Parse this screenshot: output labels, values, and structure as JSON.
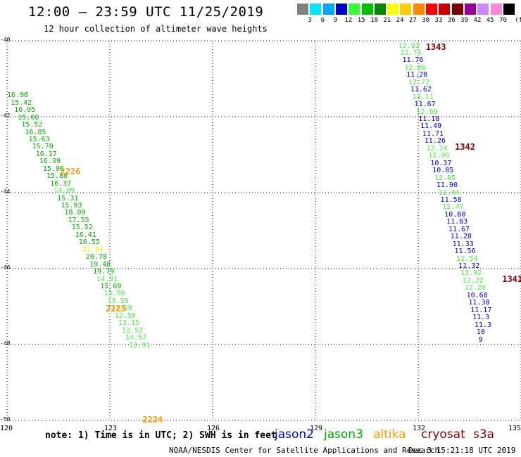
{
  "title": "12:00 – 23:59 UTC 11/25/2019",
  "subtitle": "12 hour collection of altimeter wave heights",
  "legend": {
    "unit": "(ft)",
    "bins": [
      {
        "label": "3",
        "color": "#808080"
      },
      {
        "label": "6",
        "color": "#00e5ff"
      },
      {
        "label": "9",
        "color": "#00a5ff"
      },
      {
        "label": "12",
        "color": "#0000cc"
      },
      {
        "label": "15",
        "color": "#33ff33"
      },
      {
        "label": "18",
        "color": "#00c000"
      },
      {
        "label": "21",
        "color": "#008800"
      },
      {
        "label": "24",
        "color": "#ffff00"
      },
      {
        "label": "27",
        "color": "#ffcc00"
      },
      {
        "label": "30",
        "color": "#ff8800"
      },
      {
        "label": "33",
        "color": "#ff0000"
      },
      {
        "label": "36",
        "color": "#cc0000"
      },
      {
        "label": "39",
        "color": "#770000"
      },
      {
        "label": "42",
        "color": "#990099"
      },
      {
        "label": "45",
        "color": "#cc88ff"
      },
      {
        "label": "70",
        "color": "#ff88dd"
      },
      {
        "label": "",
        "color": "#000000"
      }
    ]
  },
  "colors": {
    "light_green": "#44ee44",
    "green": "#00aa00",
    "blue": "#0000cc",
    "yellow": "#eeee00",
    "orange": "#ff9900",
    "dark_red": "#880000"
  },
  "axes": {
    "lat_ticks": [
      "-40",
      "-42",
      "-44",
      "-46",
      "-48",
      "-50"
    ],
    "lon_ticks": [
      "120",
      "123",
      "126",
      "129",
      "132",
      "135"
    ],
    "lat_range": [
      -50,
      -40
    ],
    "lon_range": [
      120,
      135
    ]
  },
  "passes": [
    {
      "label": "2226",
      "lon": 121.55,
      "lat": -43.44,
      "color": "orange"
    },
    {
      "label": "2225",
      "lon": 122.88,
      "lat": -47.06,
      "color": "orange"
    },
    {
      "label": "2224",
      "lon": 123.95,
      "lat": -49.98,
      "color": "orange"
    },
    {
      "label": "1343",
      "lon": 132.22,
      "lat": -40.16,
      "color": "dark_red"
    },
    {
      "label": "1342",
      "lon": 133.07,
      "lat": -42.8,
      "color": "dark_red"
    },
    {
      "label": "1341",
      "lon": 134.45,
      "lat": -46.28,
      "color": "dark_red"
    }
  ],
  "tracks": [
    {
      "name": "west",
      "start": [
        120.0,
        -41.45
      ],
      "step": [
        0.1046,
        -0.1935
      ],
      "values": [
        {
          "v": "16.96",
          "c": "green"
        },
        {
          "v": "15.42",
          "c": "green"
        },
        {
          "v": "16.05",
          "c": "green"
        },
        {
          "v": "15.60",
          "c": "green"
        },
        {
          "v": "15.52",
          "c": "green"
        },
        {
          "v": "16.85",
          "c": "green"
        },
        {
          "v": "15.63",
          "c": "green"
        },
        {
          "v": "15.70",
          "c": "green"
        },
        {
          "v": "16.17",
          "c": "green"
        },
        {
          "v": "16.39",
          "c": "green"
        },
        {
          "v": "15.96",
          "c": "green"
        },
        {
          "v": "15.88",
          "c": "green"
        },
        {
          "v": "16.37",
          "c": "green"
        },
        {
          "v": "14.89",
          "c": "light_green"
        },
        {
          "v": "15.31",
          "c": "green"
        },
        {
          "v": "15.93",
          "c": "green"
        },
        {
          "v": "18.09",
          "c": "green"
        },
        {
          "v": "17.55",
          "c": "green"
        },
        {
          "v": "15.52",
          "c": "green"
        },
        {
          "v": "16.41",
          "c": "green"
        },
        {
          "v": "16.55",
          "c": "green"
        },
        {
          "v": "21.04",
          "c": "yellow"
        },
        {
          "v": "20.78",
          "c": "green"
        },
        {
          "v": "19.48",
          "c": "green"
        },
        {
          "v": "19.79",
          "c": "green"
        },
        {
          "v": "14.91",
          "c": "light_green"
        },
        {
          "v": "15.69",
          "c": "green"
        },
        {
          "v": "13.50",
          "c": "light_green"
        },
        {
          "v": "13.59",
          "c": "light_green"
        },
        {
          "v": "13.10",
          "c": "light_green"
        },
        {
          "v": "12.56",
          "c": "light_green"
        },
        {
          "v": "13.15",
          "c": "light_green"
        },
        {
          "v": "13.52",
          "c": "light_green"
        },
        {
          "v": "14.57",
          "c": "light_green"
        },
        {
          "v": "13.91",
          "c": "light_green"
        }
      ]
    },
    {
      "name": "east",
      "start": [
        131.42,
        -40.14
      ],
      "step": [
        0.0585,
        -0.1935
      ],
      "values": [
        {
          "v": "12.93",
          "c": "light_green"
        },
        {
          "v": "12.74",
          "c": "light_green"
        },
        {
          "v": "11.76",
          "c": "blue"
        },
        {
          "v": "12.48",
          "c": "light_green"
        },
        {
          "v": "11.28",
          "c": "blue"
        },
        {
          "v": "12.72",
          "c": "light_green"
        },
        {
          "v": "11.62",
          "c": "blue"
        },
        {
          "v": "13.11",
          "c": "light_green"
        },
        {
          "v": "11.67",
          "c": "blue"
        },
        {
          "v": "12.69",
          "c": "light_green"
        },
        {
          "v": "11.18",
          "c": "blue"
        },
        {
          "v": "11.49",
          "c": "blue"
        },
        {
          "v": "11.71",
          "c": "blue"
        },
        {
          "v": "11.26",
          "c": "blue"
        },
        {
          "v": "12.24",
          "c": "light_green"
        },
        {
          "v": "12.06",
          "c": "light_green"
        },
        {
          "v": "10.37",
          "c": "blue"
        },
        {
          "v": "10.85",
          "c": "blue"
        },
        {
          "v": "12.85",
          "c": "light_green"
        },
        {
          "v": "11.90",
          "c": "blue"
        },
        {
          "v": "12.44",
          "c": "light_green"
        },
        {
          "v": "11.58",
          "c": "blue"
        },
        {
          "v": "12.47",
          "c": "light_green"
        },
        {
          "v": "10.80",
          "c": "blue"
        },
        {
          "v": "11.83",
          "c": "blue"
        },
        {
          "v": "11.67",
          "c": "blue"
        },
        {
          "v": "11.28",
          "c": "blue"
        },
        {
          "v": "11.33",
          "c": "blue"
        },
        {
          "v": "11.56",
          "c": "blue"
        },
        {
          "v": "12.54",
          "c": "light_green"
        },
        {
          "v": "11.32",
          "c": "blue"
        },
        {
          "v": "13.92",
          "c": "light_green"
        },
        {
          "v": "12.22",
          "c": "light_green"
        },
        {
          "v": "12.20",
          "c": "light_green"
        },
        {
          "v": "10.68",
          "c": "blue"
        },
        {
          "v": "11.38",
          "c": "blue"
        },
        {
          "v": "11.17",
          "c": "blue"
        },
        {
          "v": "11.3",
          "c": "blue"
        },
        {
          "v": "11.3",
          "c": "blue"
        },
        {
          "v": "10",
          "c": "blue"
        },
        {
          "v": "9",
          "c": "blue"
        }
      ]
    }
  ],
  "note": "note: 1) Time is in UTC; 2) SWH is in feet",
  "satellites": [
    {
      "name": "jason2",
      "color": "blue"
    },
    {
      "name": "jason3",
      "color": "green"
    },
    {
      "name": "altika",
      "color": "orange"
    },
    {
      "name": "cryosat",
      "color": "dark_red"
    },
    {
      "name": "s3a",
      "color": "dark_red"
    }
  ],
  "credit": "NOAA/NESDIS Center for Satellite Applications and Research",
  "timestamp": "Dec  3 15:21:18 UTC 2019"
}
